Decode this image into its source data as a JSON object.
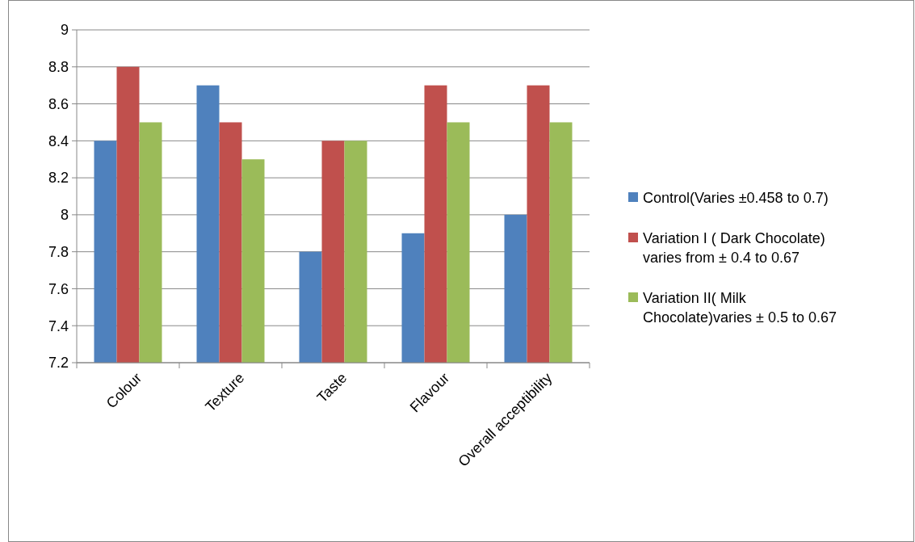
{
  "chart_data": {
    "type": "bar",
    "categories": [
      "Colour",
      "Texture",
      "Taste",
      "Flavour",
      "Overall acceptibility"
    ],
    "series": [
      {
        "name": "Control(Varies ±0.458 to 0.7)",
        "color": "#4f81bd",
        "values": [
          8.4,
          8.7,
          7.8,
          7.9,
          8.0
        ]
      },
      {
        "name": "Variation I ( Dark Chocolate) varies from ± 0.4 to 0.67",
        "color": "#c0504d",
        "values": [
          8.8,
          8.5,
          8.4,
          8.7,
          8.7
        ]
      },
      {
        "name": "Variation II( Milk Chocolate)varies ± 0.5 to 0.67",
        "color": "#9bbb59",
        "values": [
          8.5,
          8.3,
          8.4,
          8.5,
          8.5
        ]
      }
    ],
    "ylim": [
      7.2,
      9
    ],
    "yticks": [
      7.2,
      7.4,
      7.6,
      7.8,
      8,
      8.2,
      8.4,
      8.6,
      8.8,
      9
    ],
    "grid": "y",
    "legend": "right"
  }
}
